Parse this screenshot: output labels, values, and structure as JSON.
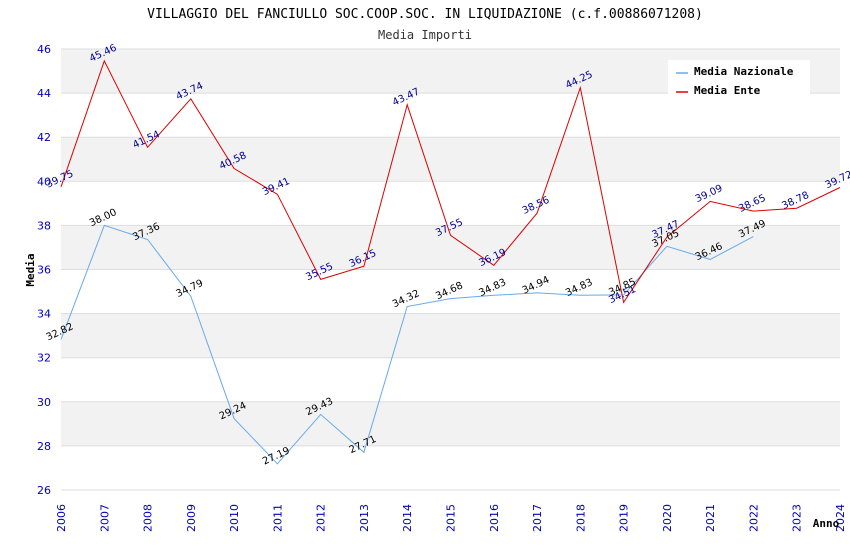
{
  "chart_data": {
    "type": "line",
    "title": "VILLAGGIO DEL FANCIULLO SOC.COOP.SOC. IN LIQUIDAZIONE (c.f.00886071208)",
    "subtitle": "Media Importi",
    "xlabel": "Anno",
    "ylabel": "Media",
    "ylim": [
      26,
      46
    ],
    "yticks": [
      "26",
      "28",
      "30",
      "32",
      "34",
      "36",
      "38",
      "40",
      "42",
      "44",
      "46"
    ],
    "categories": [
      "2006",
      "2007",
      "2008",
      "2009",
      "2010",
      "2011",
      "2012",
      "2013",
      "2014",
      "2015",
      "2016",
      "2017",
      "2018",
      "2019",
      "2020",
      "2021",
      "2022",
      "2023",
      "2024"
    ],
    "legend_position": "top-right",
    "series": [
      {
        "name": "Media Nazionale",
        "color": "#66aaee",
        "label_color": "#000000",
        "values": [
          32.82,
          38.0,
          37.36,
          34.79,
          29.24,
          27.19,
          29.43,
          27.71,
          34.32,
          34.68,
          34.83,
          34.94,
          34.83,
          34.85,
          37.05,
          36.46,
          37.49,
          null,
          null
        ],
        "labels": [
          "32.82",
          "38.00",
          "37.36",
          "34.79",
          "29.24",
          "27.19",
          "29.43",
          "27.71",
          "34.32",
          "34.68",
          "34.83",
          "34.94",
          "34.83",
          "34.85",
          "37.05",
          "36.46",
          "37.49",
          null,
          null
        ]
      },
      {
        "name": "Media Ente",
        "color": "#dd0000",
        "label_color": "#000099",
        "values": [
          39.75,
          45.46,
          41.54,
          43.74,
          40.58,
          39.41,
          35.55,
          36.15,
          43.47,
          37.55,
          36.19,
          38.56,
          44.25,
          34.51,
          37.47,
          39.09,
          38.65,
          38.78,
          39.72
        ],
        "labels": [
          "39.75",
          "45.46",
          "41.54",
          "43.74",
          "40.58",
          "39.41",
          "35.55",
          "36.15",
          "43.47",
          "37.55",
          "36.19",
          "38.56",
          "44.25",
          "34.51",
          "37.47",
          "39.09",
          "38.65",
          "38.78",
          "39.72"
        ]
      }
    ]
  }
}
